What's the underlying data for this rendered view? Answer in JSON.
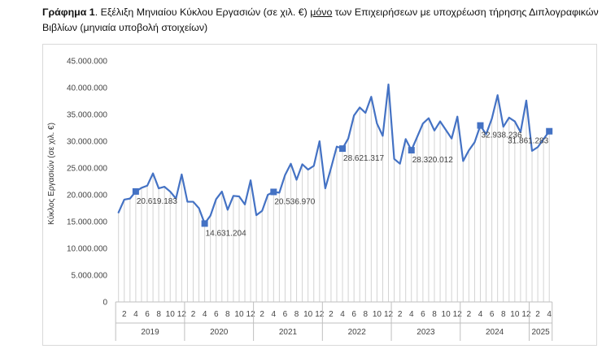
{
  "caption": {
    "bold": "Γράφημα 1",
    "pre": ". Εξέλιξη Μηνιαίου Κύκλου Εργασιών (σε χιλ. €) ",
    "underlined": "μόνο",
    "post": " των Επιχειρήσεων με υποχρέωση τήρησης Διπλογραφικών Βιβλίων (μηνιαία υποβολή στοιχείων)"
  },
  "chart_data": {
    "type": "line",
    "title": "",
    "xlabel": "",
    "ylabel": "Κύκλος Εργασιών (σε χιλ. €)",
    "ylim": [
      0,
      45000000
    ],
    "yticks": [
      0,
      5000000,
      10000000,
      15000000,
      20000000,
      25000000,
      30000000,
      35000000,
      40000000,
      45000000
    ],
    "ytick_labels": [
      "0",
      "5.000.000",
      "10.000.000",
      "15.000.000",
      "20.000.000",
      "25.000.000",
      "30.000.000",
      "35.000.000",
      "40.000.000",
      "45.000.000"
    ],
    "grid": "vertical lines at each month",
    "legend": "none",
    "line_color": "#4472c4",
    "marker_color": "#4472c4",
    "month_tick_labels": [
      "2",
      "4",
      "6",
      "8",
      "10",
      "12"
    ],
    "years": [
      {
        "label": "2019",
        "months": 12
      },
      {
        "label": "2020",
        "months": 12
      },
      {
        "label": "2021",
        "months": 12
      },
      {
        "label": "2022",
        "months": 12
      },
      {
        "label": "2023",
        "months": 12
      },
      {
        "label": "2024",
        "months": 12
      },
      {
        "label": "2025",
        "months": 4
      }
    ],
    "series": [
      {
        "values": [
          16700000,
          19100000,
          19300000,
          20619183,
          21300000,
          21700000,
          24000000,
          21200000,
          21500000,
          20600000,
          19300000,
          23800000,
          18700000,
          18700000,
          17500000,
          14631204,
          16100000,
          19200000,
          20600000,
          17200000,
          19800000,
          19700000,
          18200000,
          22700000,
          16200000,
          17000000,
          20000000,
          20536970,
          20400000,
          23700000,
          25800000,
          22800000,
          25700000,
          24700000,
          25400000,
          30000000,
          21200000,
          25000000,
          29000000,
          28621317,
          30500000,
          34800000,
          36300000,
          35300000,
          38300000,
          33300000,
          31000000,
          40600000,
          26700000,
          25800000,
          30400000,
          28320012,
          30800000,
          33300000,
          34300000,
          32000000,
          33700000,
          32100000,
          30500000,
          34600000,
          26300000,
          28300000,
          29800000,
          32938236,
          31300000,
          34200000,
          38600000,
          32700000,
          34400000,
          33700000,
          31700000,
          37600000,
          28200000,
          28900000,
          30400000,
          31861283
        ]
      }
    ],
    "highlighted_points": [
      {
        "month_index": 3,
        "value": 20619183,
        "label": "20.619.183"
      },
      {
        "month_index": 15,
        "value": 14631204,
        "label": "14.631.204"
      },
      {
        "month_index": 27,
        "value": 20536970,
        "label": "20.536.970"
      },
      {
        "month_index": 39,
        "value": 28621317,
        "label": "28.621.317"
      },
      {
        "month_index": 51,
        "value": 28320012,
        "label": "28.320.012"
      },
      {
        "month_index": 63,
        "value": 32938236,
        "label": "32.938.236"
      },
      {
        "month_index": 75,
        "value": 31861283,
        "label": "31.861.283"
      }
    ]
  }
}
